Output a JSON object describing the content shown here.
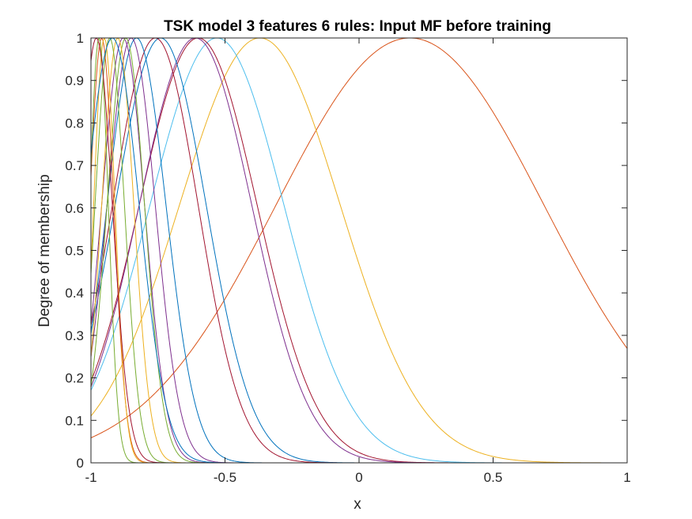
{
  "chart_data": {
    "type": "line",
    "title": "TSK model 3 features 6 rules: Input MF before training",
    "xlabel": "x",
    "ylabel": "Degree of membership",
    "xlim": [
      -1,
      1
    ],
    "ylim": [
      0,
      1
    ],
    "xticks": [
      -1,
      -0.5,
      0,
      0.5,
      1
    ],
    "xtick_labels": [
      "-1",
      "-0.5",
      "0",
      "0.5",
      "1"
    ],
    "yticks": [
      0,
      0.1,
      0.2,
      0.3,
      0.4,
      0.5,
      0.6,
      0.7,
      0.8,
      0.9,
      1
    ],
    "ytick_labels": [
      "0",
      "0.1",
      "0.2",
      "0.3",
      "0.4",
      "0.5",
      "0.6",
      "0.7",
      "0.8",
      "0.9",
      "1"
    ],
    "grid": false,
    "curve_function": "gaussian",
    "series": [
      {
        "color": "#D95319",
        "center": 0.19,
        "sigma": 0.5
      },
      {
        "color": "#EDB120",
        "center": -0.37,
        "sigma": 0.3
      },
      {
        "color": "#4DBEEE",
        "center": -0.53,
        "sigma": 0.25
      },
      {
        "color": "#A2142F",
        "center": -0.6,
        "sigma": 0.22
      },
      {
        "color": "#7E2F8E",
        "center": -0.61,
        "sigma": 0.21
      },
      {
        "color": "#0072BD",
        "center": -0.74,
        "sigma": 0.17
      },
      {
        "color": "#A2142F",
        "center": -0.76,
        "sigma": 0.16
      },
      {
        "color": "#0072BD",
        "center": -0.83,
        "sigma": 0.11
      },
      {
        "color": "#7E2F8E",
        "center": -0.85,
        "sigma": 0.09
      },
      {
        "color": "#7E2F8E",
        "center": -0.88,
        "sigma": 0.08
      },
      {
        "color": "#77AC30",
        "center": -0.87,
        "sigma": 0.07
      },
      {
        "color": "#EDB120",
        "center": -0.9,
        "sigma": 0.06
      },
      {
        "color": "#77AC30",
        "center": -0.93,
        "sigma": 0.055
      },
      {
        "color": "#D95319",
        "center": -0.96,
        "sigma": 0.045
      },
      {
        "color": "#EDB120",
        "center": -0.95,
        "sigma": 0.04
      },
      {
        "color": "#77AC30",
        "center": -0.97,
        "sigma": 0.035
      },
      {
        "color": "#0072BD",
        "center": -0.92,
        "sigma": 0.1
      },
      {
        "color": "#A2142F",
        "center": -0.98,
        "sigma": 0.06
      }
    ]
  }
}
